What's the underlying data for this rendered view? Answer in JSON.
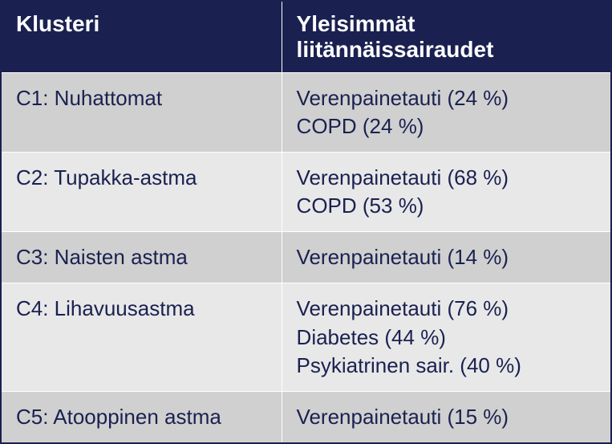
{
  "table": {
    "headers": {
      "col1": "Klusteri",
      "col2": "Yleisimmät liitännäissairaudet"
    },
    "rows": [
      {
        "cluster": "C1: Nuhattomat",
        "comorbidities": [
          "Verenpainetauti (24 %)",
          "COPD (24 %)"
        ]
      },
      {
        "cluster": "C2: Tupakka-astma",
        "comorbidities": [
          "Verenpainetauti (68 %)",
          "COPD (53 %)"
        ]
      },
      {
        "cluster": "C3: Naisten astma",
        "comorbidities": [
          "Verenpainetauti (14 %)"
        ]
      },
      {
        "cluster": "C4: Lihavuusastma",
        "comorbidities": [
          "Verenpainetauti (76 %)",
          "Diabetes (44 %)",
          "Psykiatrinen sair. (40 %)"
        ]
      },
      {
        "cluster": "C5: Atooppinen astma",
        "comorbidities": [
          "Verenpainetauti (15 %)"
        ]
      }
    ],
    "colors": {
      "header_bg": "#1a2150",
      "header_text": "#ffffff",
      "row_odd_bg": "#d0d0d0",
      "row_even_bg": "#e8e8e8",
      "body_text": "#1a2150",
      "border": "#ffffff"
    },
    "typography": {
      "header_fontsize": 28,
      "header_fontweight": "bold",
      "body_fontsize": 26,
      "body_fontweight": "normal",
      "font_family": "Arial"
    },
    "layout": {
      "col1_width_pct": 46,
      "col2_width_pct": 54
    }
  }
}
